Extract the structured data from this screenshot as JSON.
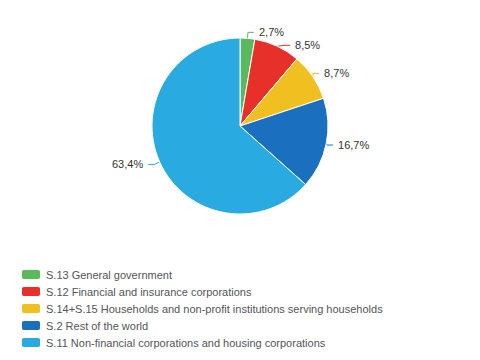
{
  "chart_data": {
    "type": "pie",
    "categories": [
      "S.13 General government",
      "S.12 Financial and insurance corporations",
      "S.14+S.15 Households and non-profit institutions serving households",
      "S.2 Rest of the world",
      "S.11 Non-financial corporations and housing corporations"
    ],
    "values": [
      2.7,
      8.5,
      8.7,
      16.7,
      63.4
    ],
    "value_labels": [
      "2,7%",
      "8,5%",
      "8,7%",
      "16,7%",
      "63,4%"
    ],
    "colors": [
      "#5CB85C",
      "#E8302A",
      "#F0C020",
      "#1B6FBF",
      "#29ABE2"
    ],
    "data_labels": true,
    "legend": "lower left"
  }
}
